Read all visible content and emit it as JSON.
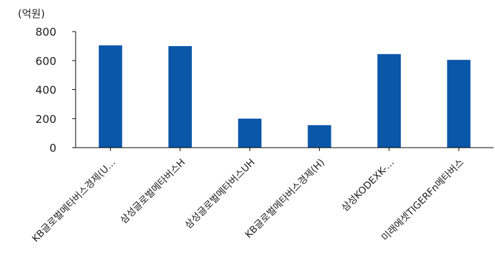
{
  "chart_data": {
    "type": "bar",
    "unit_label": "(억원)",
    "categories": [
      "KB글로벌메타버스경제(U…",
      "삼성글로벌메타버스H",
      "삼성글로벌메타버스UH",
      "KB글로벌메타버스경제(H)",
      "삼성KODEXK-…",
      "미래에셋TIGERFn메타버스"
    ],
    "values": [
      705,
      700,
      200,
      155,
      645,
      605
    ],
    "ylim": [
      0,
      800
    ],
    "yticks": [
      0,
      200,
      400,
      600,
      800
    ],
    "bar_color": "#0a57a8",
    "grid": false,
    "legend": "none"
  }
}
